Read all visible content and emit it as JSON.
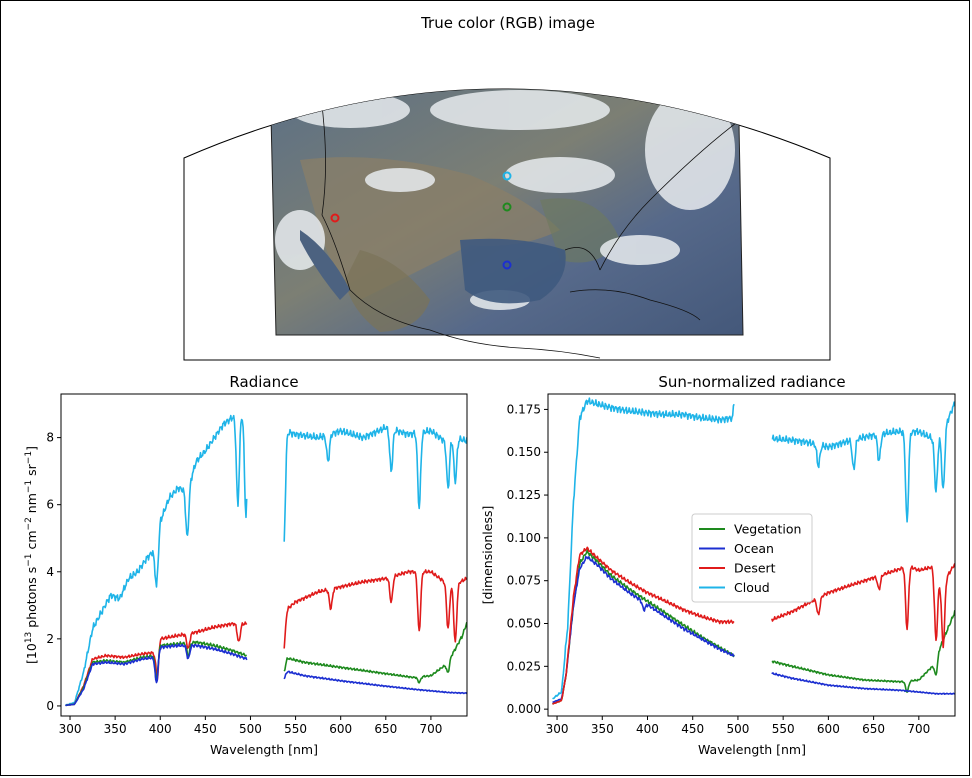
{
  "map": {
    "title": "True color (RGB) image",
    "markers": [
      {
        "name": "Vegetation",
        "color": "#1e8a1e"
      },
      {
        "name": "Ocean",
        "color": "#1c2fd1"
      },
      {
        "name": "Desert",
        "color": "#e01b1b"
      },
      {
        "name": "Cloud",
        "color": "#1fb4e8"
      }
    ]
  },
  "chart_data": [
    {
      "type": "line",
      "title": "Radiance",
      "xlabel": "Wavelength [nm]",
      "ylabel_main": "[10",
      "ylabel_parts": [
        "13",
        " photons s",
        "−1",
        " cm",
        "−2",
        " nm",
        "−1",
        " sr",
        "−1",
        "]"
      ],
      "xlim": [
        290,
        740
      ],
      "ylim": [
        -0.3,
        9.3
      ],
      "xticks": [
        300,
        350,
        400,
        450,
        500,
        550,
        600,
        650,
        700
      ],
      "yticks": [
        0,
        2,
        4,
        6,
        8
      ],
      "gap": [
        496,
        537
      ],
      "series": [
        {
          "name": "Cloud",
          "color": "#1fb4e8",
          "points": [
            [
              295,
              0.02
            ],
            [
              305,
              0.1
            ],
            [
              315,
              1.0
            ],
            [
              325,
              2.3
            ],
            [
              335,
              2.8
            ],
            [
              345,
              3.3
            ],
            [
              355,
              3.2
            ],
            [
              365,
              3.8
            ],
            [
              375,
              4.0
            ],
            [
              385,
              4.4
            ],
            [
              392,
              4.6
            ],
            [
              396,
              3.7
            ],
            [
              400,
              5.5
            ],
            [
              410,
              6.2
            ],
            [
              420,
              6.5
            ],
            [
              430,
              6.4
            ],
            [
              440,
              7.3
            ],
            [
              450,
              7.6
            ],
            [
              460,
              8.0
            ],
            [
              470,
              8.4
            ],
            [
              480,
              8.6
            ],
            [
              490,
              8.7
            ],
            [
              496,
              8.8
            ],
            [
              537,
              8.2
            ],
            [
              550,
              8.1
            ],
            [
              575,
              8.0
            ],
            [
              600,
              8.2
            ],
            [
              625,
              8.0
            ],
            [
              650,
              8.3
            ],
            [
              675,
              8.1
            ],
            [
              700,
              8.2
            ],
            [
              715,
              7.9
            ],
            [
              725,
              8.0
            ],
            [
              740,
              7.9
            ]
          ],
          "dips": [
            [
              396,
              3.5
            ],
            [
              430,
              5.0
            ],
            [
              486,
              6.0
            ],
            [
              495,
              5.7
            ],
            [
              537,
              4.8
            ],
            [
              586,
              7.3
            ],
            [
              656,
              7.0
            ],
            [
              687,
              5.9
            ],
            [
              719,
              6.5
            ],
            [
              727,
              6.7
            ]
          ]
        },
        {
          "name": "Desert",
          "color": "#e01b1b",
          "points": [
            [
              295,
              0.02
            ],
            [
              305,
              0.05
            ],
            [
              315,
              0.6
            ],
            [
              325,
              1.4
            ],
            [
              340,
              1.5
            ],
            [
              360,
              1.45
            ],
            [
              380,
              1.55
            ],
            [
              395,
              1.6
            ],
            [
              397,
              1.1
            ],
            [
              400,
              2.0
            ],
            [
              420,
              2.1
            ],
            [
              440,
              2.2
            ],
            [
              460,
              2.35
            ],
            [
              480,
              2.45
            ],
            [
              496,
              2.45
            ],
            [
              537,
              2.8
            ],
            [
              550,
              3.1
            ],
            [
              575,
              3.4
            ],
            [
              600,
              3.55
            ],
            [
              625,
              3.7
            ],
            [
              650,
              3.8
            ],
            [
              675,
              4.0
            ],
            [
              700,
              4.0
            ],
            [
              715,
              3.7
            ],
            [
              725,
              3.6
            ],
            [
              740,
              3.8
            ]
          ],
          "dips": [
            [
              396,
              0.9
            ],
            [
              431,
              1.7
            ],
            [
              487,
              1.9
            ],
            [
              537,
              1.7
            ],
            [
              589,
              2.9
            ],
            [
              656,
              3.1
            ],
            [
              687,
              2.2
            ],
            [
              719,
              2.3
            ],
            [
              727,
              1.9
            ]
          ]
        },
        {
          "name": "Vegetation",
          "color": "#1e8a1e",
          "points": [
            [
              295,
              0.02
            ],
            [
              305,
              0.05
            ],
            [
              315,
              0.55
            ],
            [
              325,
              1.3
            ],
            [
              340,
              1.35
            ],
            [
              360,
              1.3
            ],
            [
              380,
              1.45
            ],
            [
              395,
              1.5
            ],
            [
              400,
              1.8
            ],
            [
              420,
              1.85
            ],
            [
              440,
              1.9
            ],
            [
              460,
              1.8
            ],
            [
              480,
              1.65
            ],
            [
              496,
              1.5
            ],
            [
              537,
              1.45
            ],
            [
              560,
              1.3
            ],
            [
              600,
              1.15
            ],
            [
              640,
              1.0
            ],
            [
              680,
              0.85
            ],
            [
              700,
              0.9
            ],
            [
              715,
              1.2
            ],
            [
              725,
              1.6
            ],
            [
              735,
              2.1
            ],
            [
              740,
              2.5
            ]
          ],
          "dips": [
            [
              396,
              0.8
            ],
            [
              431,
              1.5
            ],
            [
              537,
              1.0
            ],
            [
              687,
              0.7
            ],
            [
              719,
              1.0
            ]
          ]
        },
        {
          "name": "Ocean",
          "color": "#1c2fd1",
          "points": [
            [
              295,
              0.02
            ],
            [
              305,
              0.05
            ],
            [
              315,
              0.5
            ],
            [
              325,
              1.25
            ],
            [
              340,
              1.3
            ],
            [
              360,
              1.25
            ],
            [
              380,
              1.4
            ],
            [
              395,
              1.45
            ],
            [
              400,
              1.75
            ],
            [
              420,
              1.8
            ],
            [
              440,
              1.8
            ],
            [
              460,
              1.7
            ],
            [
              480,
              1.55
            ],
            [
              496,
              1.4
            ],
            [
              537,
              1.05
            ],
            [
              560,
              0.9
            ],
            [
              600,
              0.75
            ],
            [
              640,
              0.62
            ],
            [
              680,
              0.5
            ],
            [
              700,
              0.45
            ],
            [
              720,
              0.4
            ],
            [
              740,
              0.38
            ]
          ],
          "dips": [
            [
              396,
              0.7
            ],
            [
              431,
              1.4
            ],
            [
              537,
              0.8
            ]
          ]
        }
      ]
    },
    {
      "type": "line",
      "title": "Sun-normalized radiance",
      "xlabel": "Wavelength [nm]",
      "ylabel": "[dimensionless]",
      "xlim": [
        290,
        740
      ],
      "ylim": [
        -0.004,
        0.184
      ],
      "xticks": [
        300,
        350,
        400,
        450,
        500,
        550,
        600,
        650,
        700
      ],
      "yticks": [
        0.0,
        0.025,
        0.05,
        0.075,
        0.1,
        0.125,
        0.15,
        0.175
      ],
      "ytick_labels": [
        "0.000",
        "0.025",
        "0.050",
        "0.075",
        "0.100",
        "0.125",
        "0.150",
        "0.175"
      ],
      "gap": [
        496,
        537
      ],
      "legend": {
        "position": "center-right",
        "entries": [
          "Vegetation",
          "Ocean",
          "Desert",
          "Cloud"
        ]
      },
      "series": [
        {
          "name": "Vegetation",
          "color": "#1e8a1e",
          "points": [
            [
              295,
              0.003
            ],
            [
              305,
              0.005
            ],
            [
              310,
              0.02
            ],
            [
              318,
              0.06
            ],
            [
              325,
              0.085
            ],
            [
              333,
              0.092
            ],
            [
              345,
              0.086
            ],
            [
              360,
              0.078
            ],
            [
              380,
              0.07
            ],
            [
              400,
              0.063
            ],
            [
              420,
              0.056
            ],
            [
              440,
              0.049
            ],
            [
              460,
              0.042
            ],
            [
              480,
              0.036
            ],
            [
              496,
              0.031
            ],
            [
              537,
              0.028
            ],
            [
              560,
              0.025
            ],
            [
              600,
              0.02
            ],
            [
              640,
              0.017
            ],
            [
              680,
              0.016
            ],
            [
              700,
              0.017
            ],
            [
              715,
              0.025
            ],
            [
              725,
              0.038
            ],
            [
              740,
              0.057
            ]
          ],
          "dips": [
            [
              687,
              0.01
            ],
            [
              719,
              0.02
            ]
          ]
        },
        {
          "name": "Ocean",
          "color": "#1c2fd1",
          "points": [
            [
              295,
              0.004
            ],
            [
              305,
              0.006
            ],
            [
              310,
              0.02
            ],
            [
              318,
              0.06
            ],
            [
              325,
              0.082
            ],
            [
              333,
              0.089
            ],
            [
              345,
              0.084
            ],
            [
              360,
              0.076
            ],
            [
              380,
              0.068
            ],
            [
              400,
              0.061
            ],
            [
              420,
              0.054
            ],
            [
              440,
              0.047
            ],
            [
              460,
              0.041
            ],
            [
              480,
              0.035
            ],
            [
              496,
              0.031
            ],
            [
              537,
              0.021
            ],
            [
              560,
              0.018
            ],
            [
              600,
              0.014
            ],
            [
              640,
              0.012
            ],
            [
              680,
              0.011
            ],
            [
              700,
              0.01
            ],
            [
              720,
              0.009
            ],
            [
              740,
              0.009
            ]
          ],
          "dips": [
            [
              396,
              0.058
            ]
          ]
        },
        {
          "name": "Desert",
          "color": "#e01b1b",
          "points": [
            [
              295,
              0.003
            ],
            [
              305,
              0.005
            ],
            [
              310,
              0.02
            ],
            [
              318,
              0.065
            ],
            [
              325,
              0.09
            ],
            [
              333,
              0.094
            ],
            [
              345,
              0.088
            ],
            [
              360,
              0.081
            ],
            [
              380,
              0.074
            ],
            [
              400,
              0.068
            ],
            [
              420,
              0.063
            ],
            [
              440,
              0.058
            ],
            [
              460,
              0.054
            ],
            [
              480,
              0.051
            ],
            [
              496,
              0.051
            ],
            [
              537,
              0.052
            ],
            [
              560,
              0.057
            ],
            [
              600,
              0.068
            ],
            [
              640,
              0.075
            ],
            [
              680,
              0.082
            ],
            [
              687,
              0.084
            ],
            [
              700,
              0.081
            ],
            [
              715,
              0.083
            ],
            [
              725,
              0.072
            ],
            [
              740,
              0.085
            ]
          ],
          "dips": [
            [
              589,
              0.055
            ],
            [
              656,
              0.07
            ],
            [
              687,
              0.047
            ],
            [
              719,
              0.04
            ],
            [
              727,
              0.037
            ]
          ]
        },
        {
          "name": "Cloud",
          "color": "#1fb4e8",
          "points": [
            [
              295,
              0.006
            ],
            [
              305,
              0.01
            ],
            [
              312,
              0.05
            ],
            [
              318,
              0.12
            ],
            [
              325,
              0.17
            ],
            [
              333,
              0.18
            ],
            [
              345,
              0.178
            ],
            [
              360,
              0.176
            ],
            [
              380,
              0.174
            ],
            [
              400,
              0.173
            ],
            [
              420,
              0.172
            ],
            [
              440,
              0.172
            ],
            [
              460,
              0.17
            ],
            [
              480,
              0.169
            ],
            [
              494,
              0.17
            ],
            [
              496,
              0.181
            ],
            [
              537,
              0.158
            ],
            [
              560,
              0.157
            ],
            [
              575,
              0.156
            ],
            [
              600,
              0.153
            ],
            [
              625,
              0.157
            ],
            [
              650,
              0.16
            ],
            [
              675,
              0.162
            ],
            [
              700,
              0.162
            ],
            [
              715,
              0.158
            ],
            [
              725,
              0.16
            ],
            [
              740,
              0.179
            ]
          ],
          "dips": [
            [
              589,
              0.142
            ],
            [
              628,
              0.14
            ],
            [
              656,
              0.145
            ],
            [
              687,
              0.109
            ],
            [
              719,
              0.127
            ],
            [
              727,
              0.128
            ]
          ]
        }
      ]
    }
  ]
}
